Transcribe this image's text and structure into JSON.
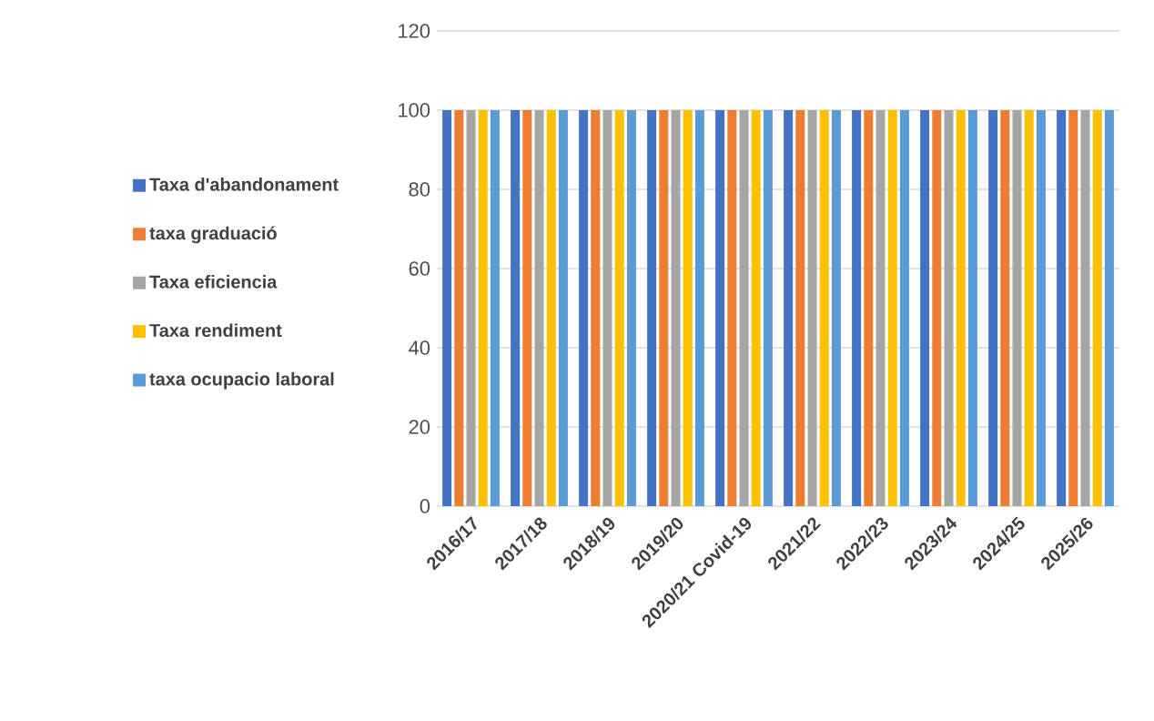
{
  "chart_data": {
    "type": "bar",
    "categories": [
      "2016/17",
      "2017/18",
      "2018/19",
      "2019/20",
      "2020/21 Covid-19",
      "2021/22",
      "2022/23",
      "2023/24",
      "2024/25",
      "2025/26"
    ],
    "series": [
      {
        "name": "Taxa d'abandonament",
        "color": "#4472c4",
        "values": [
          100,
          100,
          100,
          100,
          100,
          100,
          100,
          100,
          100,
          100
        ]
      },
      {
        "name": "taxa graduació",
        "color": "#ed7d31",
        "values": [
          100,
          100,
          100,
          100,
          100,
          100,
          100,
          100,
          100,
          100
        ]
      },
      {
        "name": "Taxa eficiencia",
        "color": "#a5a5a5",
        "values": [
          100,
          100,
          100,
          100,
          100,
          100,
          100,
          100,
          100,
          100
        ]
      },
      {
        "name": "Taxa rendiment",
        "color": "#ffc000",
        "values": [
          100,
          100,
          100,
          100,
          100,
          100,
          100,
          100,
          100,
          100
        ]
      },
      {
        "name": "taxa ocupacio laboral",
        "color": "#5b9bd5",
        "values": [
          100,
          100,
          100,
          100,
          100,
          100,
          100,
          100,
          100,
          100
        ]
      }
    ],
    "ylim": [
      0,
      120
    ],
    "yticks": [
      0,
      20,
      40,
      60,
      80,
      100,
      120
    ],
    "grid": "y",
    "legend": "left"
  }
}
